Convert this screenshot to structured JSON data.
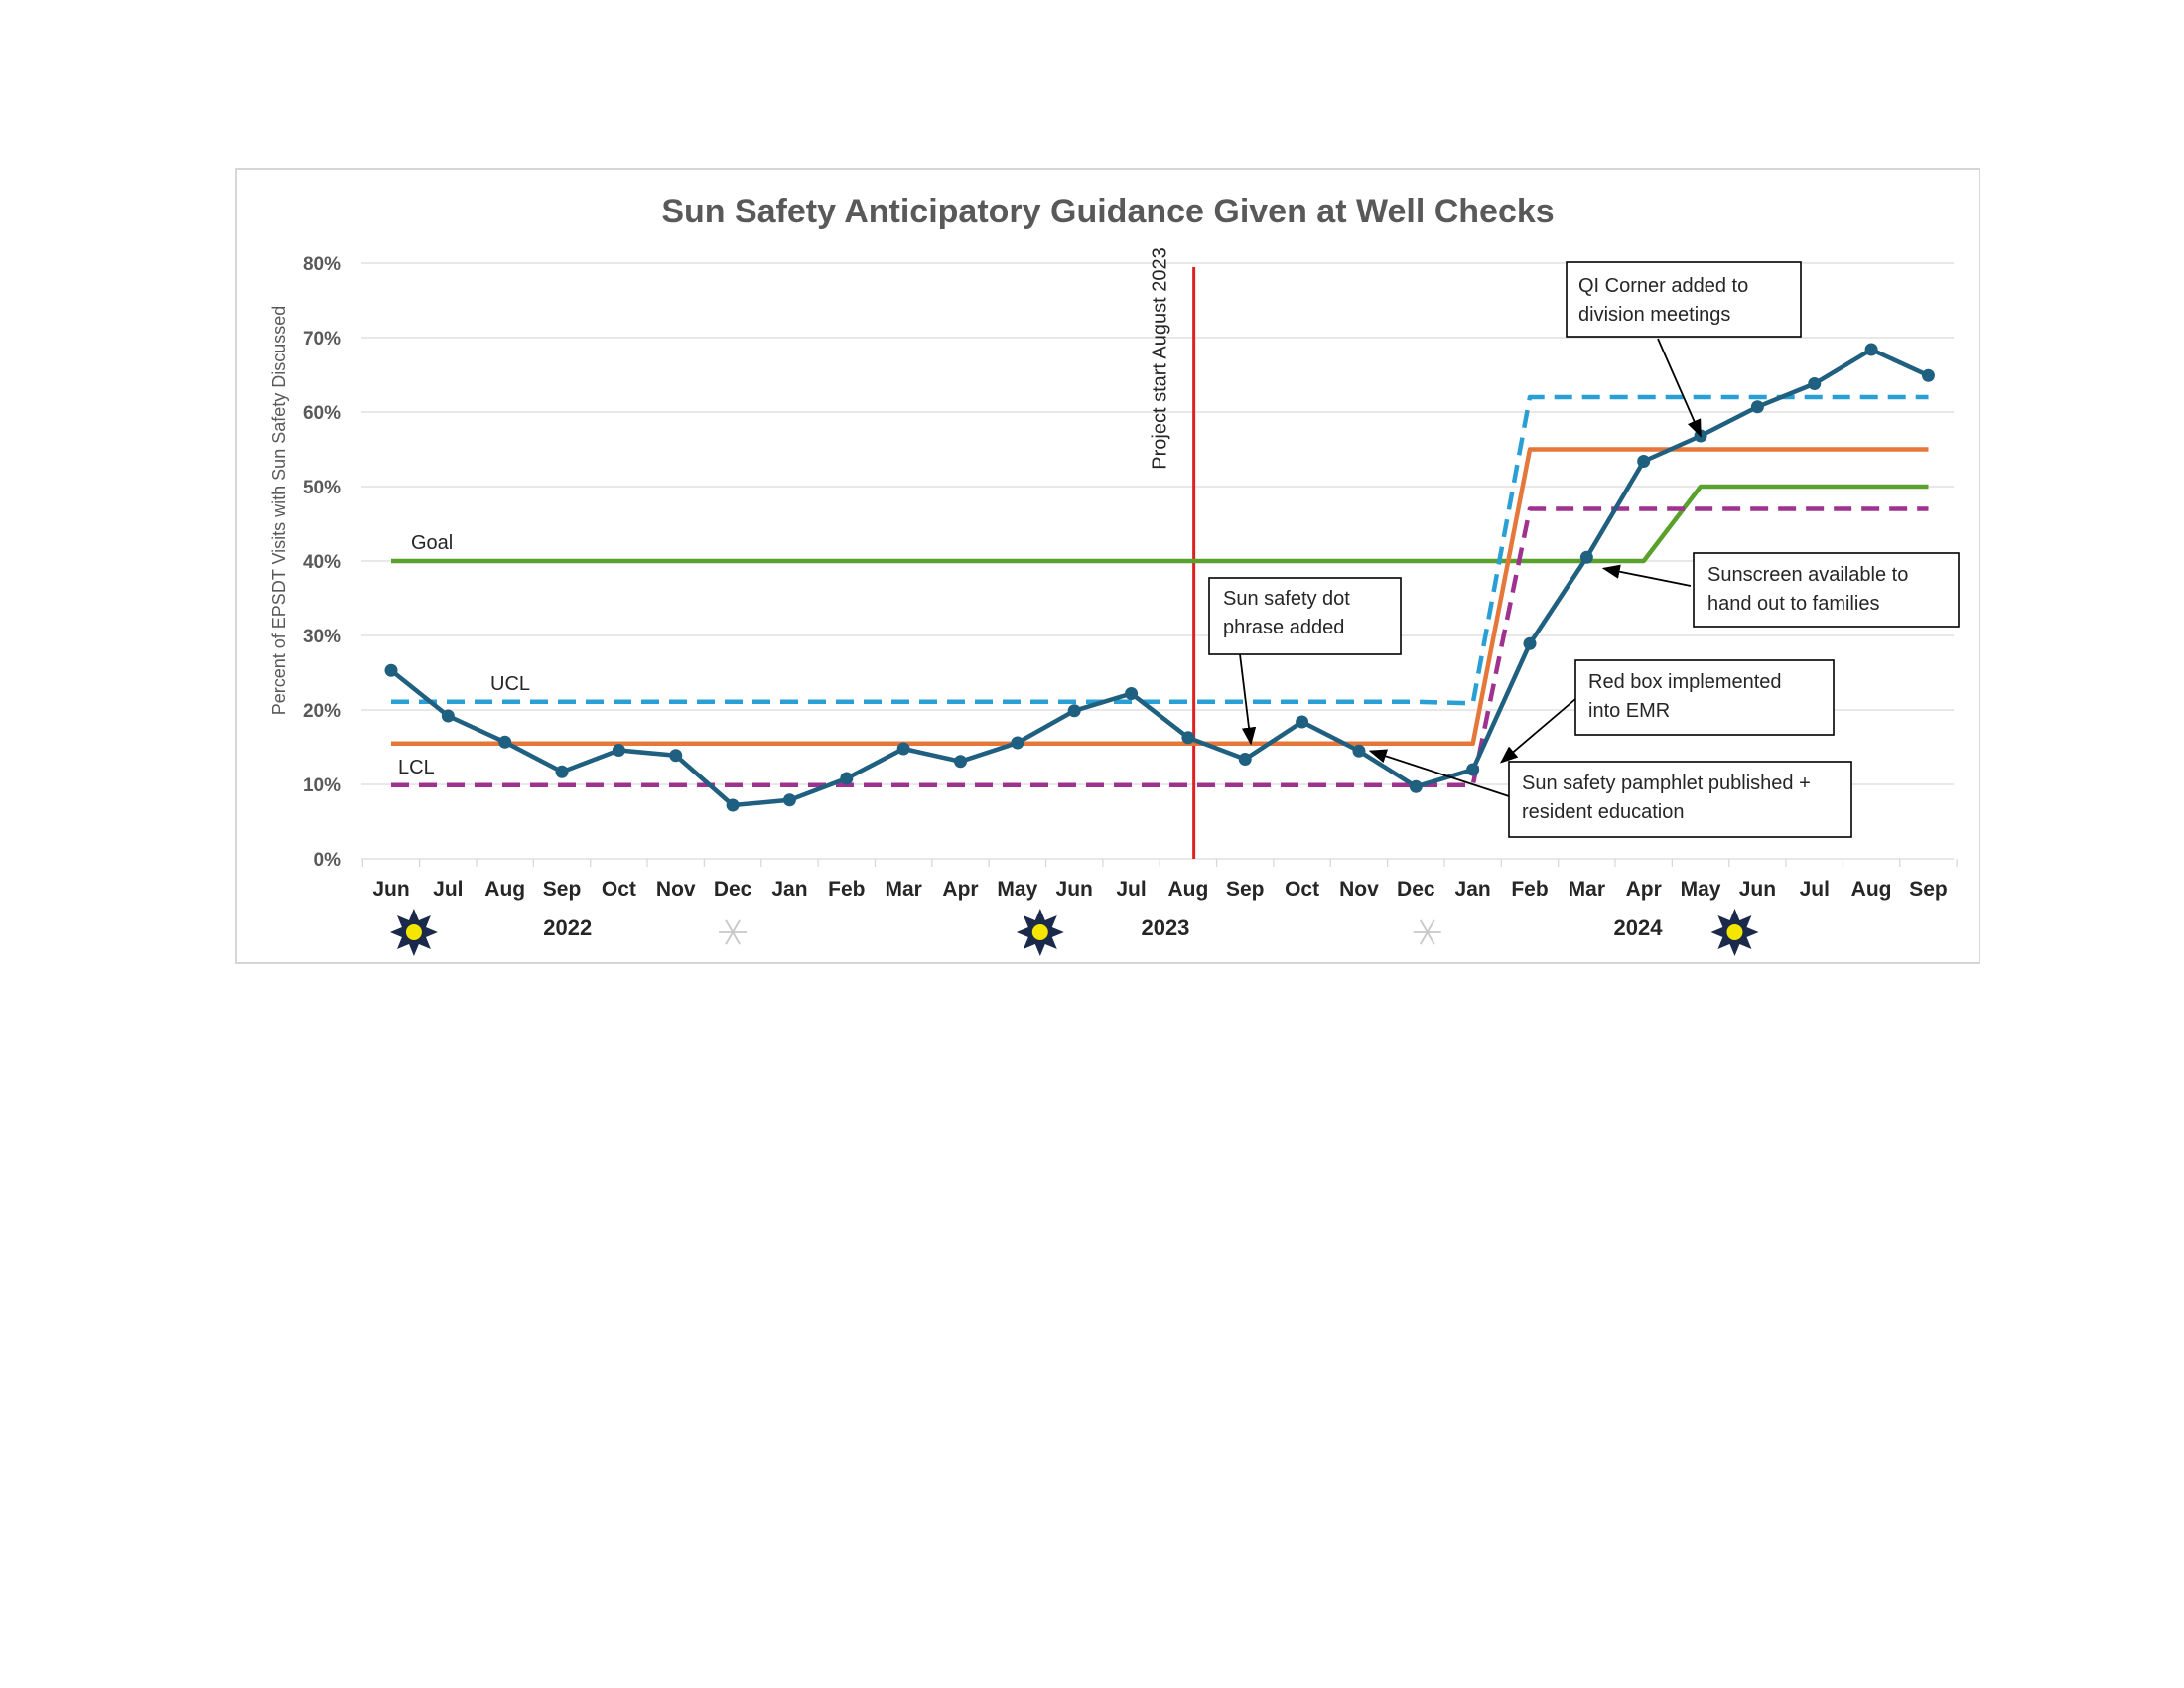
{
  "chart_data": {
    "type": "line",
    "title": "Sun Safety Anticipatory Guidance Given at Well Checks",
    "ylabel": "Percent of EPSDT Visits with Sun Safety Discussed",
    "ylim": [
      0,
      0.8
    ],
    "yticks": [
      "0%",
      "10%",
      "20%",
      "30%",
      "40%",
      "50%",
      "60%",
      "70%",
      "80%"
    ],
    "categories": [
      "Jun",
      "Jul",
      "Aug",
      "Sep",
      "Oct",
      "Nov",
      "Dec",
      "Jan",
      "Feb",
      "Mar",
      "Apr",
      "May",
      "Jun",
      "Jul",
      "Aug",
      "Sep",
      "Oct",
      "Nov",
      "Dec",
      "Jan",
      "Feb",
      "Mar",
      "Apr",
      "May",
      "Jun",
      "Jul",
      "Aug",
      "Sep"
    ],
    "years": [
      {
        "label": "2022",
        "at_index": 3.1
      },
      {
        "label": "2023",
        "at_index": 13.6
      },
      {
        "label": "2024",
        "at_index": 21.9
      }
    ],
    "grid": true,
    "series": [
      {
        "name": "",
        "role": "data",
        "color": "#1f5f7f",
        "markers": true,
        "values": [
          0.253,
          0.192,
          0.157,
          0.117,
          0.146,
          0.139,
          0.072,
          0.079,
          0.108,
          0.148,
          0.131,
          0.156,
          0.199,
          0.222,
          0.163,
          0.134,
          0.184,
          0.145,
          0.097,
          0.12,
          0.289,
          0.405,
          0.534,
          0.568,
          0.607,
          0.638,
          0.684,
          0.649
        ]
      },
      {
        "name": "Goal",
        "role": "goal",
        "color": "#5aa02c",
        "dash": "solid",
        "values": [
          0.4,
          0.4,
          0.4,
          0.4,
          0.4,
          0.4,
          0.4,
          0.4,
          0.4,
          0.4,
          0.4,
          0.4,
          0.4,
          0.4,
          0.4,
          0.4,
          0.4,
          0.4,
          0.4,
          0.4,
          0.4,
          0.4,
          0.4,
          0.5,
          0.5,
          0.5,
          0.5,
          0.5
        ]
      },
      {
        "name": "UCL",
        "role": "ucl",
        "color": "#2a9fd6",
        "dash": "dashed",
        "values": [
          0.211,
          0.211,
          0.211,
          0.211,
          0.211,
          0.211,
          0.211,
          0.211,
          0.211,
          0.211,
          0.211,
          0.211,
          0.211,
          0.211,
          0.211,
          0.211,
          0.211,
          0.211,
          0.211,
          0.209,
          0.62,
          0.62,
          0.62,
          0.62,
          0.62,
          0.62,
          0.62,
          0.62
        ]
      },
      {
        "name": "",
        "role": "center",
        "color": "#e5773a",
        "dash": "solid",
        "values": [
          0.155,
          0.155,
          0.155,
          0.155,
          0.155,
          0.155,
          0.155,
          0.155,
          0.155,
          0.155,
          0.155,
          0.155,
          0.155,
          0.155,
          0.155,
          0.155,
          0.155,
          0.155,
          0.155,
          0.155,
          0.55,
          0.55,
          0.55,
          0.55,
          0.55,
          0.55,
          0.55,
          0.55
        ]
      },
      {
        "name": "LCL",
        "role": "lcl",
        "color": "#a0328f",
        "dash": "dashed",
        "values": [
          0.099,
          0.099,
          0.099,
          0.099,
          0.099,
          0.099,
          0.099,
          0.099,
          0.099,
          0.099,
          0.099,
          0.099,
          0.099,
          0.099,
          0.099,
          0.099,
          0.099,
          0.099,
          0.099,
          0.099,
          0.47,
          0.47,
          0.47,
          0.47,
          0.47,
          0.47,
          0.47,
          0.47
        ]
      }
    ],
    "vertical_marker": {
      "label": "Project start August 2023",
      "at_index": 14.1,
      "color": "#e02020"
    },
    "annotations": [
      {
        "lines": [
          "QI Corner added to",
          "division meetings"
        ],
        "target_index": 23,
        "target_value": 0.568
      },
      {
        "lines": [
          "Sunscreen available to",
          "hand out to families"
        ],
        "target_index": 21.3,
        "target_value": 0.39
      },
      {
        "lines": [
          "Sun safety dot",
          "phrase added"
        ],
        "target_index": 15.1,
        "target_value": 0.155
      },
      {
        "lines": [
          "Red box implemented",
          "into EMR"
        ],
        "target_index": 19.5,
        "target_value": 0.13
      },
      {
        "lines": [
          "Sun safety pamphlet published +",
          "resident education"
        ],
        "target_index": 17.2,
        "target_value": 0.145
      }
    ],
    "icons": [
      {
        "name": "sun-icon",
        "at_index": 0.4
      },
      {
        "name": "snowflake-icon",
        "at_index": 6.0
      },
      {
        "name": "sun-icon",
        "at_index": 11.4
      },
      {
        "name": "snowflake-icon",
        "at_index": 18.2
      },
      {
        "name": "sun-icon",
        "at_index": 23.6
      }
    ]
  }
}
